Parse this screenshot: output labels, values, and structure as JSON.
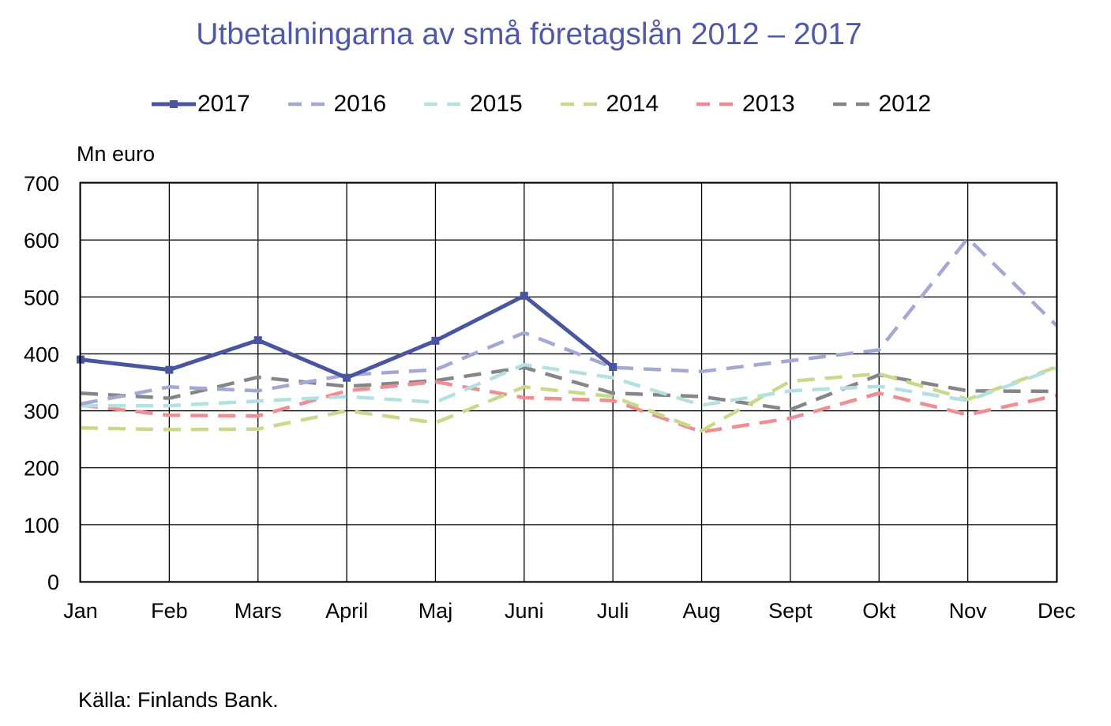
{
  "source_note": "Källa: Finlands Bank.",
  "chart_data": {
    "type": "line",
    "title": "Utbetalningarna av små företagslån 2012 – 2017",
    "ylabel": "Mn euro",
    "xlabel": "",
    "ylim": [
      0,
      700
    ],
    "yticks": [
      0,
      100,
      200,
      300,
      400,
      500,
      600,
      700
    ],
    "grid": true,
    "legend_position": "top",
    "categories": [
      "Jan",
      "Feb",
      "Mars",
      "April",
      "Maj",
      "Juni",
      "Juli",
      "Aug",
      "Sept",
      "Okt",
      "Nov",
      "Dec"
    ],
    "series": [
      {
        "name": "2017",
        "color": "#4a55a2",
        "style": "solid-marker",
        "values": [
          390,
          372,
          424,
          358,
          423,
          502,
          377,
          null,
          null,
          null,
          null,
          null
        ]
      },
      {
        "name": "2016",
        "color": "#a3a8d4",
        "style": "dashed",
        "values": [
          312,
          342,
          335,
          363,
          372,
          437,
          376,
          369,
          388,
          407,
          603,
          450
        ]
      },
      {
        "name": "2015",
        "color": "#b5e0e2",
        "style": "dashed",
        "values": [
          309,
          309,
          317,
          325,
          315,
          381,
          358,
          310,
          335,
          343,
          318,
          375
        ]
      },
      {
        "name": "2014",
        "color": "#c8da8a",
        "style": "dashed",
        "values": [
          270,
          267,
          268,
          300,
          279,
          342,
          325,
          265,
          352,
          365,
          320,
          377
        ]
      },
      {
        "name": "2013",
        "color": "#ee8e92",
        "style": "dashed",
        "values": [
          310,
          292,
          291,
          335,
          351,
          323,
          318,
          263,
          287,
          331,
          293,
          327
        ]
      },
      {
        "name": "2012",
        "color": "#868688",
        "style": "dashed",
        "values": [
          331,
          322,
          359,
          343,
          353,
          376,
          331,
          325,
          302,
          363,
          335,
          334
        ]
      }
    ]
  }
}
